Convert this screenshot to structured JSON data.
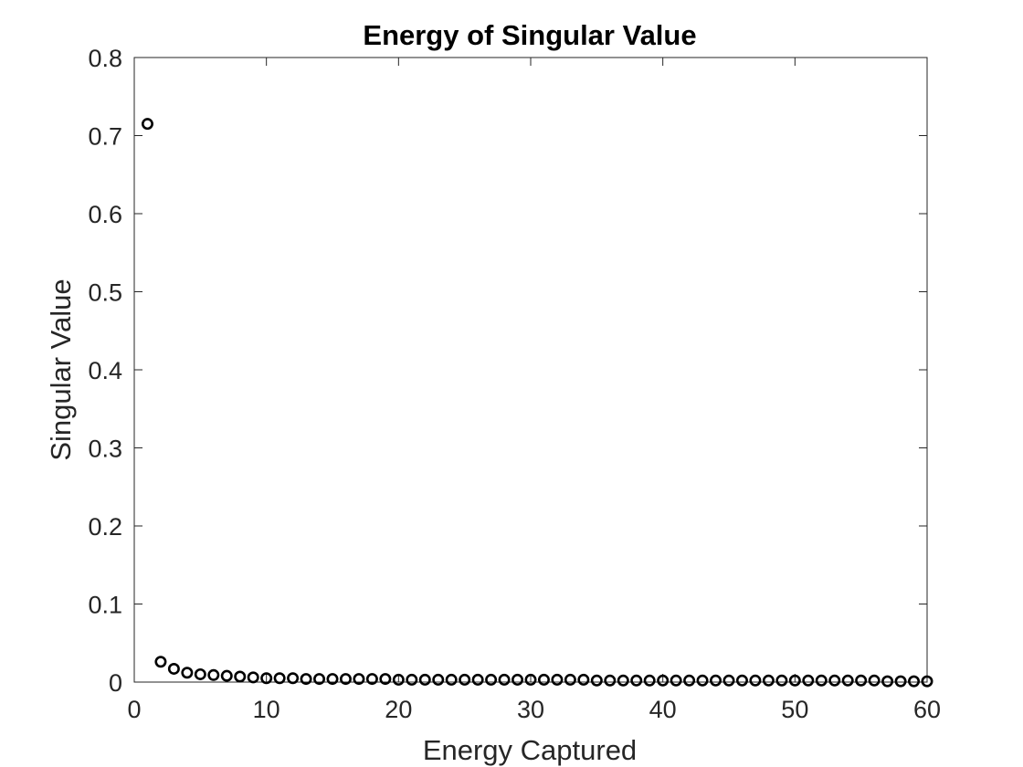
{
  "chart_data": {
    "type": "scatter",
    "title": "Energy of Singular Value",
    "xlabel": "Energy Captured",
    "ylabel": "Singular Value",
    "xlim": [
      0,
      60
    ],
    "ylim": [
      0,
      0.8
    ],
    "xticks": [
      0,
      10,
      20,
      30,
      40,
      50,
      60
    ],
    "xtick_labels": [
      "0",
      "10",
      "20",
      "30",
      "40",
      "50",
      "60"
    ],
    "yticks": [
      0,
      0.1,
      0.2,
      0.3,
      0.4,
      0.5,
      0.6,
      0.7,
      0.8
    ],
    "ytick_labels": [
      "0",
      "0.1",
      "0.2",
      "0.3",
      "0.4",
      "0.5",
      "0.6",
      "0.7",
      "0.8"
    ],
    "grid": false,
    "marker": "circle",
    "marker_color": "#000000",
    "series": [
      {
        "x": [
          1,
          2,
          3,
          4,
          5,
          6,
          7,
          8,
          9,
          10,
          11,
          12,
          13,
          14,
          15,
          16,
          17,
          18,
          19,
          20,
          21,
          22,
          23,
          24,
          25,
          26,
          27,
          28,
          29,
          30,
          31,
          32,
          33,
          34,
          35,
          36,
          37,
          38,
          39,
          40,
          41,
          42,
          43,
          44,
          45,
          46,
          47,
          48,
          49,
          50,
          51,
          52,
          53,
          54,
          55,
          56,
          57,
          58,
          59,
          60
        ],
        "values": [
          0.715,
          0.026,
          0.017,
          0.012,
          0.01,
          0.009,
          0.008,
          0.007,
          0.006,
          0.005,
          0.005,
          0.005,
          0.004,
          0.004,
          0.004,
          0.004,
          0.004,
          0.004,
          0.004,
          0.003,
          0.003,
          0.003,
          0.003,
          0.003,
          0.003,
          0.003,
          0.003,
          0.003,
          0.003,
          0.003,
          0.003,
          0.003,
          0.003,
          0.003,
          0.002,
          0.002,
          0.002,
          0.002,
          0.002,
          0.002,
          0.002,
          0.002,
          0.002,
          0.002,
          0.002,
          0.002,
          0.002,
          0.002,
          0.002,
          0.002,
          0.002,
          0.002,
          0.002,
          0.002,
          0.002,
          0.002,
          0.001,
          0.001,
          0.001,
          0.001
        ]
      }
    ]
  }
}
